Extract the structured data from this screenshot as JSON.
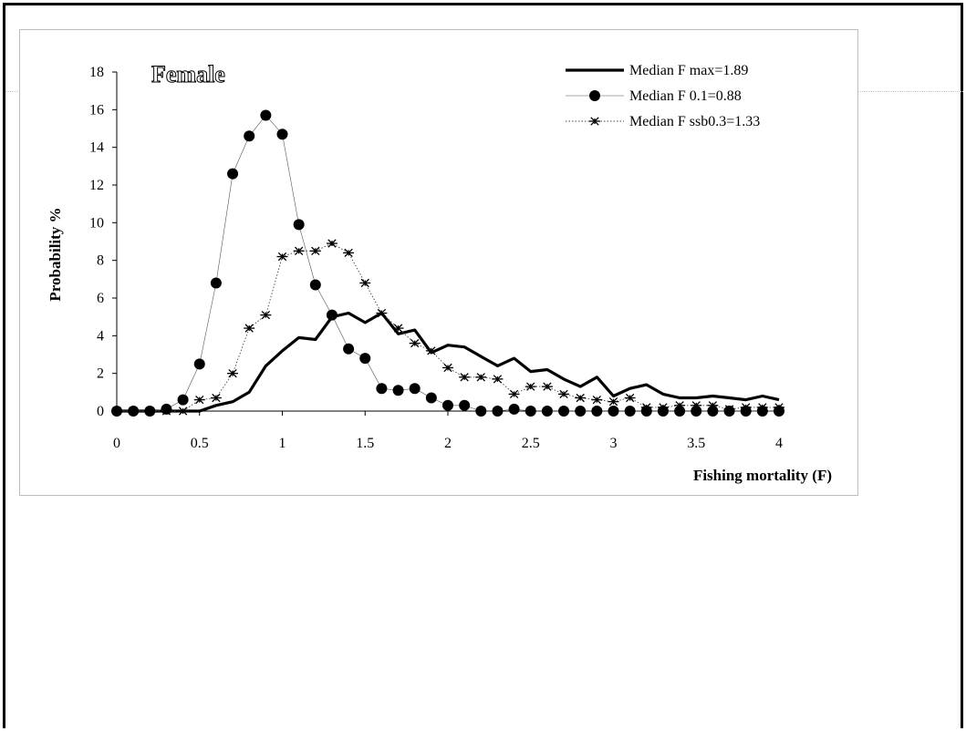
{
  "chart_data": {
    "type": "line",
    "title": "",
    "annotation": "Female",
    "xlabel": "Fishing mortality (F)",
    "ylabel": "Probability %",
    "xlim": [
      0,
      4
    ],
    "ylim": [
      0,
      18
    ],
    "xticks": [
      "0",
      "0.5",
      "1",
      "1.5",
      "2",
      "2.5",
      "3",
      "3.5",
      "4"
    ],
    "yticks": [
      "0",
      "2",
      "4",
      "6",
      "8",
      "10",
      "12",
      "14",
      "16",
      "18"
    ],
    "grid": false,
    "legend_position": "top-right",
    "x": [
      0,
      0.1,
      0.2,
      0.3,
      0.4,
      0.5,
      0.6,
      0.7,
      0.8,
      0.9,
      1.0,
      1.1,
      1.2,
      1.3,
      1.4,
      1.5,
      1.6,
      1.7,
      1.8,
      1.9,
      2.0,
      2.1,
      2.2,
      2.3,
      2.4,
      2.5,
      2.6,
      2.7,
      2.8,
      2.9,
      3.0,
      3.1,
      3.2,
      3.3,
      3.4,
      3.5,
      3.6,
      3.7,
      3.8,
      3.9,
      4.0
    ],
    "series": [
      {
        "name": "Median F max=1.89",
        "style": "thick-line",
        "color": "#000000",
        "values": [
          0,
          0,
          0,
          0,
          0,
          0,
          0.3,
          0.5,
          1.0,
          2.4,
          3.2,
          3.9,
          3.8,
          5.0,
          5.2,
          4.7,
          5.2,
          4.1,
          4.3,
          3.1,
          3.5,
          3.4,
          2.9,
          2.4,
          2.8,
          2.1,
          2.2,
          1.7,
          1.3,
          1.8,
          0.8,
          1.2,
          1.4,
          0.9,
          0.7,
          0.7,
          0.8,
          0.7,
          0.6,
          0.8,
          0.6
        ]
      },
      {
        "name": "Median F 0.1=0.88",
        "style": "thin-line-circles",
        "color": "#000000",
        "values": [
          0,
          0,
          0,
          0.1,
          0.6,
          2.5,
          6.8,
          12.6,
          14.6,
          15.7,
          14.7,
          9.9,
          6.7,
          5.1,
          3.3,
          2.8,
          1.2,
          1.1,
          1.2,
          0.7,
          0.3,
          0.3,
          0,
          0,
          0.1,
          0,
          0,
          0,
          0,
          0,
          0,
          0,
          0,
          0,
          0,
          0,
          0,
          0,
          0,
          0,
          0
        ]
      },
      {
        "name": "Median F ssb0.3=1.33",
        "style": "dotted-line-stars",
        "color": "#000000",
        "values": [
          0,
          0,
          0,
          0,
          0,
          0.6,
          0.7,
          2.0,
          4.4,
          5.1,
          8.2,
          8.5,
          8.5,
          8.9,
          8.4,
          6.8,
          5.2,
          4.4,
          3.6,
          3.2,
          2.3,
          1.8,
          1.8,
          1.7,
          0.9,
          1.3,
          1.3,
          0.9,
          0.7,
          0.6,
          0.5,
          0.7,
          0.2,
          0.2,
          0.3,
          0.3,
          0.3,
          0.1,
          0.2,
          0.2,
          0.2
        ]
      }
    ]
  }
}
